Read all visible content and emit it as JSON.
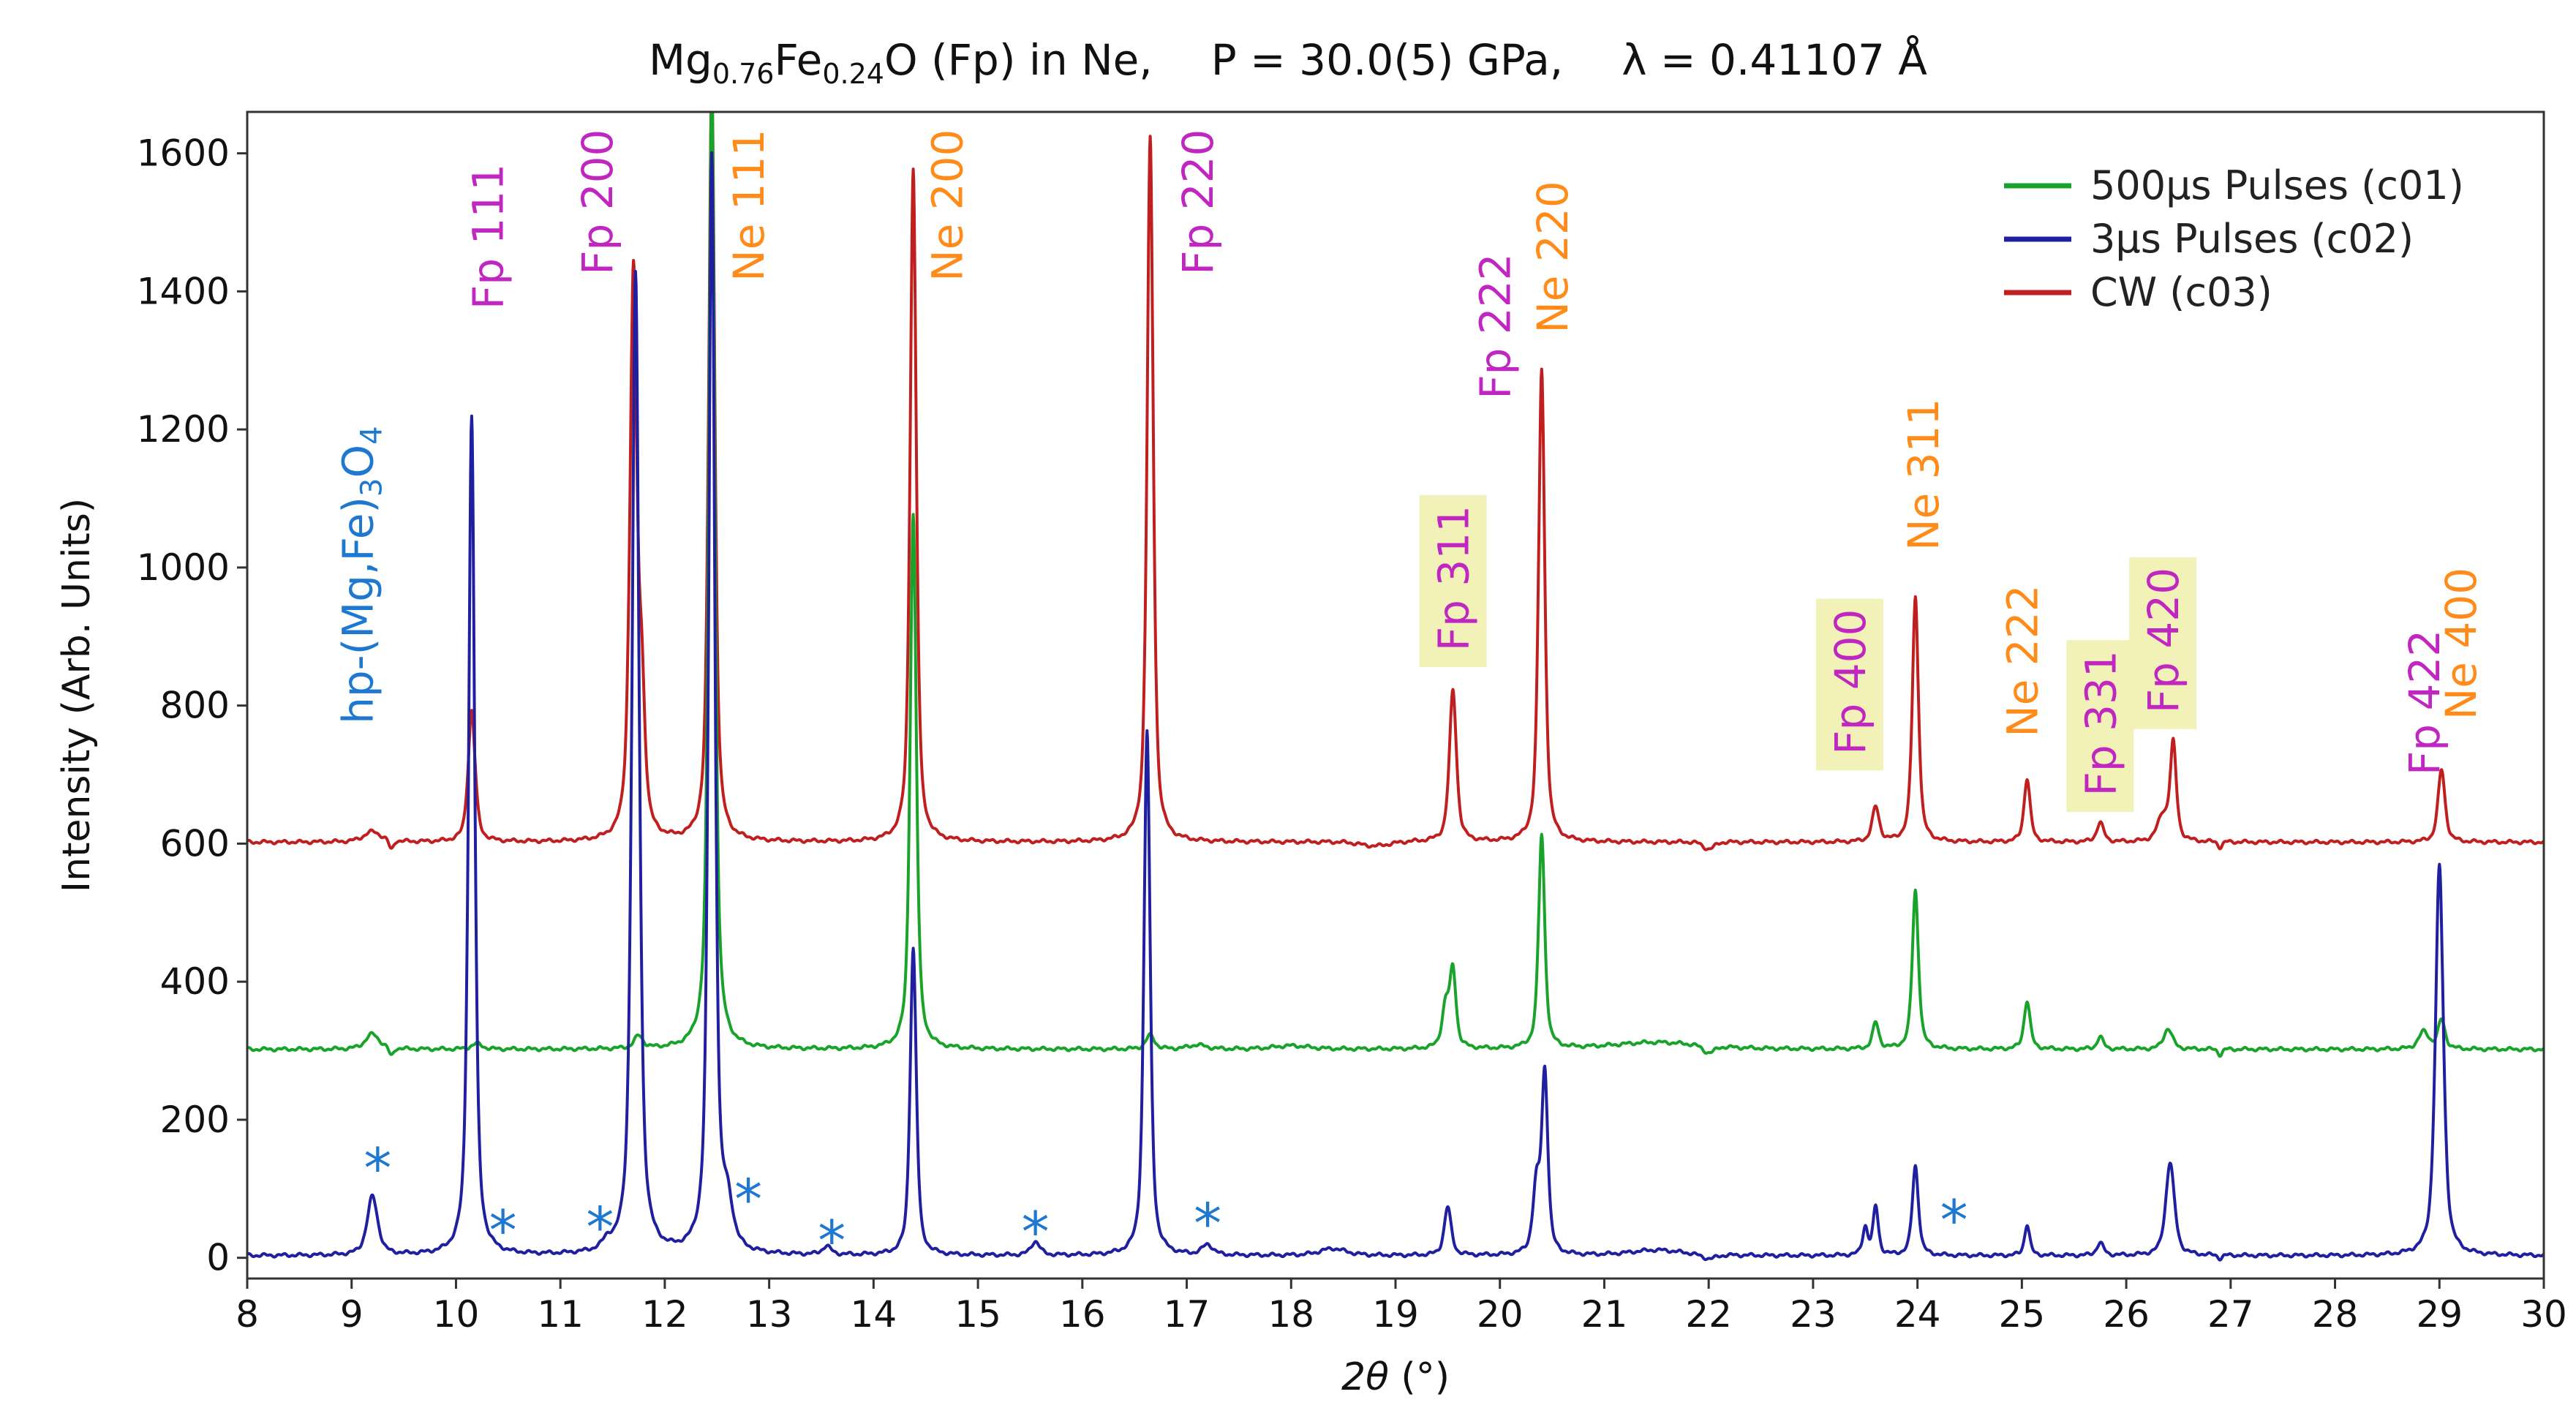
{
  "chart_data": {
    "type": "line",
    "title": {
      "compound_parts": [
        {
          "text": "Mg",
          "sub": false
        },
        {
          "text": "0.76",
          "sub": true
        },
        {
          "text": "Fe",
          "sub": false
        },
        {
          "text": "0.24",
          "sub": true
        },
        {
          "text": "O (Fp) in Ne,",
          "sub": false
        }
      ],
      "pressure": "P = 30.0(5) GPa,",
      "wavelength": "λ = 0.41107 Å"
    },
    "xlabel_symbol": "2θ",
    "xlabel_unit": " (°)",
    "ylabel": "Intensity (Arb. Units)",
    "xlim": [
      8,
      30
    ],
    "ylim": [
      -30,
      1660
    ],
    "xticks": [
      8,
      9,
      10,
      11,
      12,
      13,
      14,
      15,
      16,
      17,
      18,
      19,
      20,
      21,
      22,
      23,
      24,
      25,
      26,
      27,
      28,
      29,
      30
    ],
    "yticks": [
      0,
      200,
      400,
      600,
      800,
      1000,
      1200,
      1400,
      1600
    ],
    "legend": {
      "position": "top-right",
      "entries": [
        {
          "label": "500μs Pulses (c01)",
          "color": "#1aa32b"
        },
        {
          "label": "3μs Pulses (c02)",
          "color": "#1f1fa0"
        },
        {
          "label": "CW (c03)",
          "color": "#c01f1f"
        }
      ]
    },
    "series": [
      {
        "name": "CW (c03)",
        "color": "#c01f1f",
        "baseline": 602,
        "peaks": [
          [
            9.2,
            15,
            0.1
          ],
          [
            10.15,
            190,
            0.04
          ],
          [
            11.7,
            820,
            0.04
          ],
          [
            11.78,
            180,
            0.035
          ],
          [
            12.45,
            1100,
            0.035
          ],
          [
            14.38,
            975,
            0.035
          ],
          [
            16.65,
            1020,
            0.035
          ],
          [
            19.55,
            220,
            0.04
          ],
          [
            20.4,
            685,
            0.035
          ],
          [
            23.6,
            50,
            0.04
          ],
          [
            23.98,
            355,
            0.035
          ],
          [
            25.05,
            92,
            0.035
          ],
          [
            25.75,
            28,
            0.04
          ],
          [
            26.35,
            35,
            0.06
          ],
          [
            26.45,
            140,
            0.035
          ],
          [
            29.02,
            105,
            0.04
          ]
        ],
        "dips": [
          [
            9.38,
            -14,
            0.03
          ],
          [
            18.8,
            -6,
            0.2
          ],
          [
            22.0,
            -10,
            0.08
          ],
          [
            26.9,
            -8,
            0.03
          ]
        ]
      },
      {
        "name": "500μs Pulses (c01)",
        "color": "#1aa32b",
        "baseline": 302,
        "peaks": [
          [
            9.2,
            22,
            0.08
          ],
          [
            10.2,
            8,
            0.06
          ],
          [
            11.75,
            18,
            0.05
          ],
          [
            12.45,
            1400,
            0.035
          ],
          [
            14.38,
            775,
            0.035
          ],
          [
            16.65,
            20,
            0.05
          ],
          [
            17.1,
            6,
            0.1
          ],
          [
            18.0,
            5,
            0.2
          ],
          [
            19.48,
            60,
            0.04
          ],
          [
            19.55,
            110,
            0.035
          ],
          [
            20.4,
            310,
            0.035
          ],
          [
            21.5,
            10,
            0.5
          ],
          [
            23.6,
            38,
            0.035
          ],
          [
            23.98,
            230,
            0.035
          ],
          [
            25.05,
            70,
            0.035
          ],
          [
            25.75,
            18,
            0.035
          ],
          [
            26.4,
            30,
            0.05
          ],
          [
            28.85,
            25,
            0.06
          ],
          [
            29.02,
            42,
            0.04
          ]
        ],
        "dips": [
          [
            9.38,
            -12,
            0.03
          ],
          [
            22.0,
            -10,
            0.08
          ],
          [
            26.9,
            -8,
            0.03
          ]
        ]
      },
      {
        "name": "3μs Pulses (c02)",
        "color": "#1f1fa0",
        "baseline": 3,
        "peaks": [
          [
            9.2,
            85,
            0.06
          ],
          [
            10.15,
            1215,
            0.035
          ],
          [
            11.45,
            12,
            0.05
          ],
          [
            11.72,
            1420,
            0.04
          ],
          [
            12.45,
            1590,
            0.035
          ],
          [
            12.6,
            60,
            0.06
          ],
          [
            13.55,
            12,
            0.05
          ],
          [
            14.38,
            445,
            0.035
          ],
          [
            15.55,
            20,
            0.05
          ],
          [
            16.62,
            760,
            0.035
          ],
          [
            17.2,
            15,
            0.06
          ],
          [
            18.4,
            10,
            0.15
          ],
          [
            19.5,
            70,
            0.04
          ],
          [
            20.35,
            95,
            0.04
          ],
          [
            20.43,
            260,
            0.035
          ],
          [
            21.5,
            8,
            0.3
          ],
          [
            23.5,
            40,
            0.03
          ],
          [
            23.6,
            70,
            0.03
          ],
          [
            23.98,
            130,
            0.035
          ],
          [
            25.05,
            45,
            0.03
          ],
          [
            25.75,
            18,
            0.04
          ],
          [
            26.42,
            135,
            0.05
          ],
          [
            29.0,
            565,
            0.045
          ]
        ],
        "dips": [
          [
            22.0,
            -6,
            0.1
          ],
          [
            26.9,
            -5,
            0.03
          ]
        ]
      }
    ],
    "annotations": [
      {
        "label": "Fp 111",
        "x": 10.3,
        "y_top": 1585,
        "color": "#c026c0",
        "highlight": false
      },
      {
        "label": "Fp 200",
        "x": 11.35,
        "y_top": 1635,
        "color": "#c026c0",
        "highlight": false
      },
      {
        "label": "Ne 111",
        "x": 12.8,
        "y_top": 1635,
        "color": "#ff8c1a",
        "highlight": false
      },
      {
        "label": "Ne 200",
        "x": 14.7,
        "y_top": 1635,
        "color": "#ff8c1a",
        "highlight": false
      },
      {
        "label": "Fp 220",
        "x": 17.1,
        "y_top": 1635,
        "color": "#c026c0",
        "highlight": false
      },
      {
        "label": "Fp 222",
        "x": 19.95,
        "y_top": 1455,
        "color": "#c026c0",
        "highlight": false
      },
      {
        "label": "Ne 220",
        "x": 20.5,
        "y_top": 1560,
        "color": "#ff8c1a",
        "highlight": false
      },
      {
        "label": "Fp 311",
        "x": 19.55,
        "y_top": 1090,
        "color": "#c026c0",
        "highlight": true
      },
      {
        "label": "Fp 400",
        "x": 23.35,
        "y_top": 940,
        "color": "#c026c0",
        "highlight": true
      },
      {
        "label": "Ne 311",
        "x": 24.05,
        "y_top": 1245,
        "color": "#ff8c1a",
        "highlight": false
      },
      {
        "label": "Ne 222",
        "x": 25.0,
        "y_top": 975,
        "color": "#ff8c1a",
        "highlight": false
      },
      {
        "label": "Fp 331",
        "x": 25.75,
        "y_top": 880,
        "color": "#c026c0",
        "highlight": true
      },
      {
        "label": "Fp 420",
        "x": 26.35,
        "y_top": 1000,
        "color": "#c026c0",
        "highlight": true
      },
      {
        "label": "Fp 422",
        "x": 28.85,
        "y_top": 910,
        "color": "#c026c0",
        "highlight": false
      },
      {
        "label": "Ne 400",
        "x": 29.2,
        "y_top": 1000,
        "color": "#ff8c1a",
        "highlight": false
      }
    ],
    "phase_label": {
      "parts": [
        {
          "text": "hp-(Mg,Fe)",
          "sub": false
        },
        {
          "text": "3",
          "sub": true
        },
        {
          "text": "O",
          "sub": false
        },
        {
          "text": "4",
          "sub": true
        }
      ],
      "x": 9.35,
      "y_top": 1205,
      "color": "#1f78d0"
    },
    "asterisks": {
      "symbol": "*",
      "color": "#1f78d0",
      "points": [
        [
          9.25,
          140
        ],
        [
          10.45,
          50
        ],
        [
          11.38,
          55
        ],
        [
          12.8,
          95
        ],
        [
          13.6,
          35
        ],
        [
          15.55,
          48
        ],
        [
          17.2,
          60
        ],
        [
          24.35,
          65
        ]
      ]
    }
  }
}
